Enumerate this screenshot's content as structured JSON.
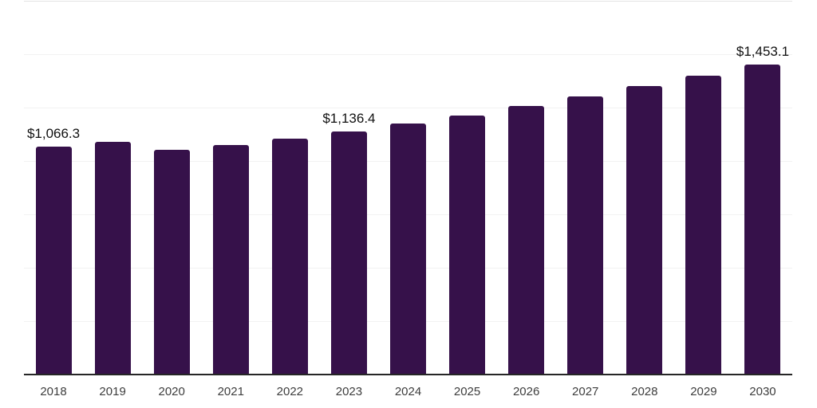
{
  "chart_data": {
    "type": "bar",
    "title": "",
    "xlabel": "",
    "ylabel": "",
    "categories": [
      "2018",
      "2019",
      "2020",
      "2021",
      "2022",
      "2023",
      "2024",
      "2025",
      "2026",
      "2027",
      "2028",
      "2029",
      "2030"
    ],
    "values": [
      1066.3,
      1089.2,
      1051.0,
      1075.9,
      1103.3,
      1136.4,
      1174.2,
      1213.8,
      1258.6,
      1302.2,
      1351.8,
      1399.2,
      1453.1
    ],
    "data_labels": [
      {
        "index": 0,
        "text": "$1,066.3"
      },
      {
        "index": 5,
        "text": "$1,136.4"
      },
      {
        "index": 12,
        "text": "$1,453.1"
      }
    ],
    "ylim": [
      0,
      1750
    ],
    "grid": true,
    "grid_step": 250,
    "legend": "none",
    "colors": {
      "bar": "#36114A",
      "gridline": "#f2f2f2",
      "top_gridline": "#e3e3e3",
      "axis_line": "#262626",
      "data_label_text": "#111111",
      "tick_text": "#3d3d3d",
      "background": "#ffffff"
    }
  }
}
